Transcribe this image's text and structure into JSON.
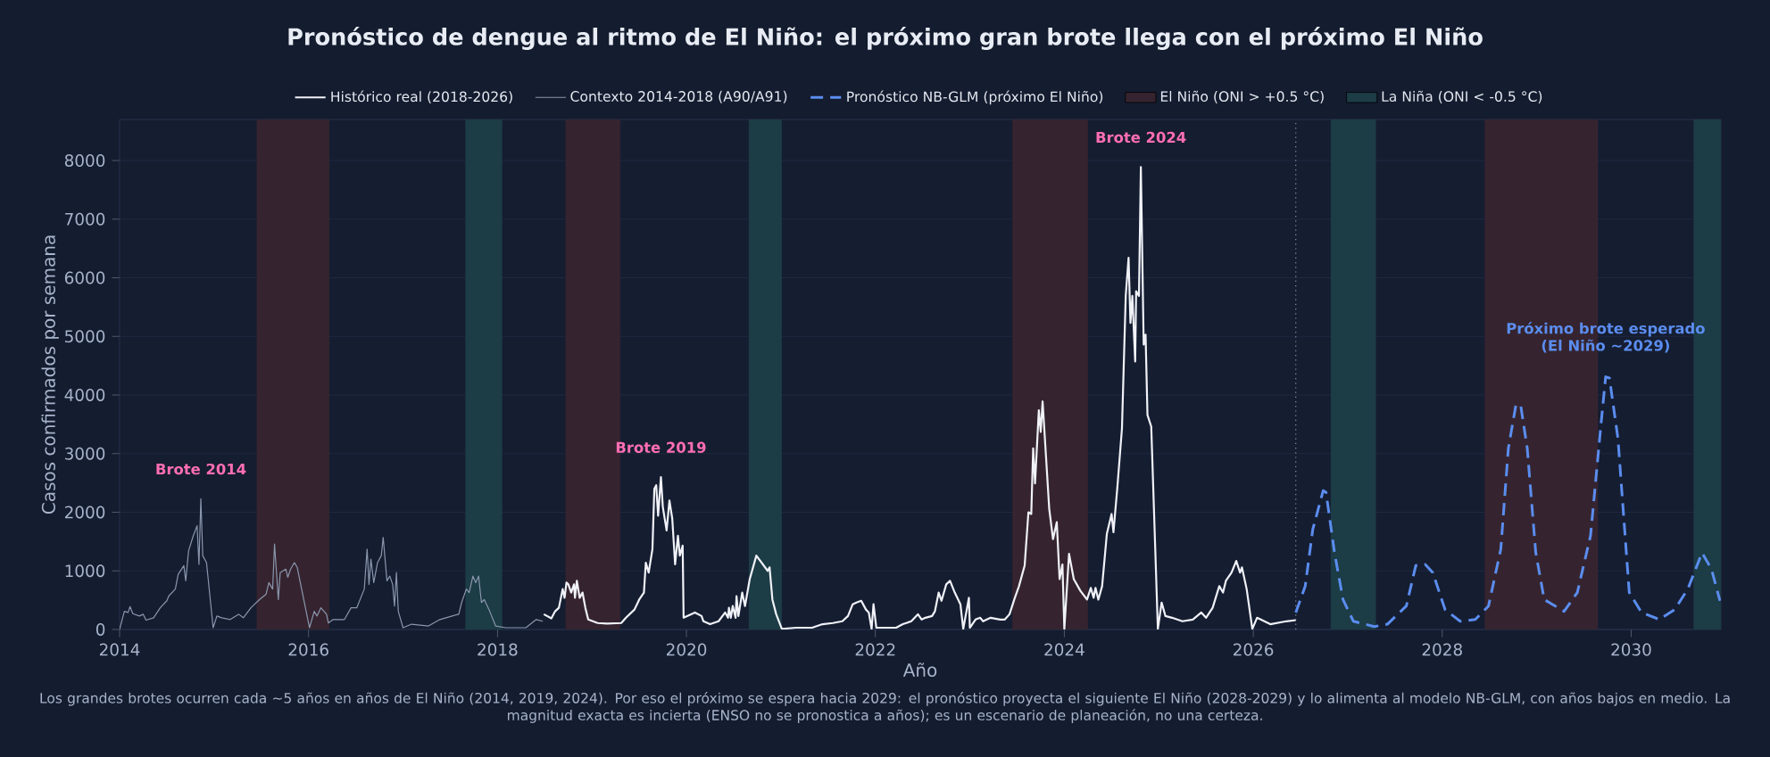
{
  "chart_data": {
    "type": "line",
    "title": "Pronóstico de dengue al ritmo de El Niño: el próximo gran brote llega con el próximo El Niño",
    "xlabel": "Año",
    "ylabel": "Casos confirmados por semana",
    "xlim": [
      2014,
      2030.95
    ],
    "ylim": [
      0,
      8700
    ],
    "xticks": [
      2014,
      2016,
      2018,
      2020,
      2022,
      2024,
      2026,
      2028,
      2030
    ],
    "yticks": [
      0,
      1000,
      2000,
      3000,
      4000,
      5000,
      6000,
      7000,
      8000
    ],
    "grid": "y",
    "legend": "top",
    "series": [
      {
        "name": "Histórico real (2018-2026)",
        "color": "#f0f2f8",
        "line_style": "solid",
        "x": [
          2018.49,
          2018.57,
          2018.61,
          2018.65,
          2018.69,
          2018.71,
          2018.73,
          2018.75,
          2018.78,
          2018.81,
          2018.82,
          2018.84,
          2018.87,
          2018.9,
          2018.93,
          2018.96,
          2019.06,
          2019.16,
          2019.31,
          2019.36,
          2019.45,
          2019.5,
          2019.55,
          2019.57,
          2019.6,
          2019.64,
          2019.66,
          2019.68,
          2019.7,
          2019.73,
          2019.75,
          2019.79,
          2019.82,
          2019.85,
          2019.88,
          2019.91,
          2019.93,
          2019.96,
          2019.97,
          2020.09,
          2020.16,
          2020.18,
          2020.25,
          2020.34,
          2020.41,
          2020.44,
          2020.45,
          2020.47,
          2020.49,
          2020.52,
          2020.53,
          2020.55,
          2020.59,
          2020.62,
          2020.67,
          2020.74,
          2020.86,
          2020.88,
          2020.91,
          2020.95,
          2021.01,
          2021.16,
          2021.33,
          2021.44,
          2021.55,
          2021.65,
          2021.71,
          2021.76,
          2021.8,
          2021.85,
          2021.9,
          2021.93,
          2021.96,
          2021.98,
          2022.01,
          2022.22,
          2022.29,
          2022.38,
          2022.45,
          2022.49,
          2022.53,
          2022.6,
          2022.63,
          2022.67,
          2022.7,
          2022.75,
          2022.79,
          2022.84,
          2022.9,
          2022.93,
          2022.99,
          2023.0,
          2023.06,
          2023.11,
          2023.14,
          2023.22,
          2023.32,
          2023.37,
          2023.42,
          2023.47,
          2023.52,
          2023.58,
          2023.62,
          2023.65,
          2023.67,
          2023.69,
          2023.73,
          2023.75,
          2023.77,
          2023.84,
          2023.88,
          2023.92,
          2023.95,
          2023.98,
          2024.0,
          2024.05,
          2024.1,
          2024.17,
          2024.24,
          2024.28,
          2024.31,
          2024.33,
          2024.36,
          2024.4,
          2024.45,
          2024.5,
          2024.52,
          2024.56,
          2024.61,
          2024.65,
          2024.68,
          2024.7,
          2024.72,
          2024.75,
          2024.76,
          2024.79,
          2024.81,
          2024.84,
          2024.86,
          2024.88,
          2024.92,
          2024.99,
          2025.03,
          2025.07,
          2025.14,
          2025.25,
          2025.36,
          2025.45,
          2025.5,
          2025.57,
          2025.64,
          2025.68,
          2025.71,
          2025.77,
          2025.82,
          2025.86,
          2025.88,
          2025.93,
          2025.99,
          2026.04,
          2026.18,
          2026.35,
          2026.45
        ],
        "values": [
          260,
          190,
          310,
          370,
          690,
          540,
          800,
          770,
          630,
          770,
          540,
          830,
          540,
          630,
          370,
          170,
          110,
          100,
          110,
          200,
          340,
          510,
          630,
          1140,
          970,
          1370,
          2400,
          2460,
          1940,
          2600,
          2090,
          1690,
          2200,
          1890,
          1110,
          1600,
          1260,
          1430,
          200,
          290,
          230,
          140,
          90,
          140,
          290,
          200,
          370,
          200,
          400,
          200,
          570,
          230,
          630,
          400,
          860,
          1260,
          1000,
          1060,
          510,
          260,
          10,
          30,
          30,
          90,
          110,
          140,
          230,
          430,
          460,
          490,
          340,
          290,
          10,
          430,
          30,
          30,
          90,
          140,
          260,
          170,
          200,
          230,
          310,
          630,
          490,
          770,
          830,
          630,
          430,
          10,
          540,
          30,
          170,
          200,
          140,
          200,
          170,
          170,
          260,
          510,
          740,
          1090,
          2000,
          1970,
          3090,
          2490,
          3740,
          3370,
          3890,
          2060,
          1540,
          1830,
          860,
          1110,
          10,
          1290,
          860,
          660,
          510,
          710,
          540,
          710,
          510,
          740,
          1630,
          1970,
          1660,
          2400,
          3430,
          5690,
          6340,
          5230,
          5690,
          4570,
          5770,
          5690,
          7890,
          4860,
          5030,
          3660,
          3460,
          10,
          460,
          230,
          200,
          140,
          170,
          290,
          200,
          370,
          740,
          630,
          830,
          970,
          1170,
          970,
          1060,
          690,
          10,
          200,
          90,
          140,
          160
        ]
      },
      {
        "name": "Contexto 2014-2018 (A90/A91)",
        "color": "#8a96ad",
        "line_style": "solid",
        "x": [
          2014.0,
          2014.05,
          2014.09,
          2014.11,
          2014.14,
          2014.21,
          2014.25,
          2014.28,
          2014.36,
          2014.43,
          2014.5,
          2014.52,
          2014.59,
          2014.62,
          2014.68,
          2014.7,
          2014.73,
          2014.78,
          2014.82,
          2014.84,
          2014.86,
          2014.88,
          2014.92,
          2014.99,
          2015.03,
          2015.08,
          2015.17,
          2015.26,
          2015.31,
          2015.39,
          2015.48,
          2015.55,
          2015.58,
          2015.62,
          2015.64,
          2015.68,
          2015.7,
          2015.76,
          2015.78,
          2015.81,
          2015.85,
          2015.88,
          2016.01,
          2016.06,
          2016.09,
          2016.13,
          2016.19,
          2016.21,
          2016.26,
          2016.38,
          2016.45,
          2016.51,
          2016.59,
          2016.62,
          2016.64,
          2016.66,
          2016.69,
          2016.73,
          2016.77,
          2016.79,
          2016.83,
          2016.86,
          2016.89,
          2016.91,
          2016.93,
          2016.95,
          2017.0,
          2017.09,
          2017.27,
          2017.39,
          2017.52,
          2017.59,
          2017.62,
          2017.67,
          2017.7,
          2017.74,
          2017.77,
          2017.8,
          2017.83,
          2017.86,
          2017.91,
          2017.98,
          2018.09,
          2018.3,
          2018.41,
          2018.48
        ],
        "values": [
          0,
          310,
          290,
          390,
          270,
          230,
          260,
          160,
          200,
          370,
          490,
          570,
          690,
          940,
          1090,
          830,
          1340,
          1600,
          1770,
          1110,
          2230,
          1260,
          1140,
          30,
          230,
          200,
          170,
          260,
          200,
          370,
          510,
          600,
          800,
          690,
          1460,
          510,
          970,
          1030,
          890,
          1030,
          1140,
          1060,
          30,
          310,
          230,
          370,
          260,
          110,
          170,
          170,
          370,
          370,
          690,
          1370,
          770,
          1200,
          800,
          1140,
          1260,
          1570,
          830,
          910,
          770,
          400,
          970,
          310,
          30,
          90,
          60,
          170,
          230,
          260,
          460,
          690,
          630,
          910,
          800,
          910,
          460,
          510,
          340,
          60,
          30,
          30,
          170,
          140
        ]
      },
      {
        "name": "Pronóstico NB-GLM (próximo El Niño)",
        "color": "#5b8def",
        "line_style": "dashed",
        "x": [
          2026.45,
          2026.55,
          2026.63,
          2026.74,
          2026.77,
          2026.86,
          2026.95,
          2027.06,
          2027.28,
          2027.42,
          2027.62,
          2027.72,
          2027.82,
          2027.9,
          2028.03,
          2028.19,
          2028.35,
          2028.49,
          2028.62,
          2028.7,
          2028.78,
          2028.83,
          2028.9,
          2028.99,
          2029.08,
          2029.29,
          2029.43,
          2029.57,
          2029.68,
          2029.73,
          2029.77,
          2029.86,
          2029.98,
          2030.11,
          2030.3,
          2030.46,
          2030.6,
          2030.75,
          2030.85,
          2030.94
        ],
        "values": [
          290,
          740,
          1710,
          2370,
          2340,
          1310,
          510,
          140,
          50,
          90,
          400,
          1090,
          1110,
          970,
          340,
          140,
          170,
          400,
          1370,
          3090,
          3830,
          3830,
          3090,
          1310,
          510,
          310,
          630,
          1600,
          3490,
          4310,
          4290,
          3260,
          630,
          290,
          170,
          340,
          690,
          1310,
          1030,
          490
        ]
      }
    ],
    "bands": [
      {
        "axis": "x",
        "from": 2015.45,
        "to": 2016.22,
        "color": "#35242f",
        "label": "El Niño (ONI > +0.5 °C)"
      },
      {
        "axis": "x",
        "from": 2018.72,
        "to": 2019.3,
        "color": "#35242f"
      },
      {
        "axis": "x",
        "from": 2023.45,
        "to": 2024.25,
        "color": "#35242f"
      },
      {
        "axis": "x",
        "from": 2028.45,
        "to": 2029.65,
        "color": "#35242f"
      },
      {
        "axis": "x",
        "from": 2017.66,
        "to": 2018.05,
        "color": "#1c3c46",
        "label": "La Niña (ONI < -0.5 °C)"
      },
      {
        "axis": "x",
        "from": 2020.66,
        "to": 2021.01,
        "color": "#1c3c46"
      },
      {
        "axis": "x",
        "from": 2026.82,
        "to": 2027.3,
        "color": "#1c3c46"
      },
      {
        "axis": "x",
        "from": 2030.66,
        "to": 2030.95,
        "color": "#1c3c46"
      }
    ],
    "ref_lines": [
      {
        "axis": "x",
        "value": 2026.45,
        "color": "#8a96ad",
        "line_style": "dotted"
      }
    ],
    "annotations": [
      {
        "text": "Brote 2014",
        "x": 2014.86,
        "y": 2230
      },
      {
        "text": "Brote 2019",
        "x": 2019.73,
        "y": 2600
      },
      {
        "text": "Brote 2024",
        "x": 2024.81,
        "y": 7890
      },
      {
        "text": "Próximo brote esperado",
        "x": 2029.73,
        "y": 4310
      },
      {
        "text": "(El Niño ~2029)",
        "x": 2029.73,
        "y": 4310
      },
      "Los grandes brotes ocurren cada ~5 años en años de El Niño (2014, 2019, 2024). Por eso el próximo se espera hacia 2029: el pronóstico proyecta el siguiente El Niño (2028-2029) y lo alimenta al modelo NB-GLM, con años bajos en medio. La magnitud exacta es incierta (ENSO no se pronostica a años); es un escenario de planeación, no una certeza."
    ]
  }
}
